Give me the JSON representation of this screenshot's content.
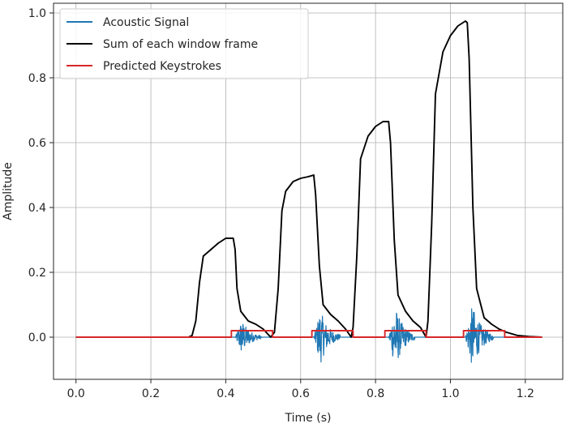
{
  "chart_data": {
    "type": "line",
    "xlabel": "Time (s)",
    "ylabel": "Amplitude",
    "xlim": [
      -0.06,
      1.3
    ],
    "ylim": [
      -0.13,
      1.03
    ],
    "x_ticks": [
      0.0,
      0.2,
      0.4,
      0.6,
      0.8,
      1.0,
      1.2
    ],
    "x_tick_labels": [
      "0.0",
      "0.2",
      "0.4",
      "0.6",
      "0.8",
      "1.0",
      "1.2"
    ],
    "y_ticks": [
      0.0,
      0.2,
      0.4,
      0.6,
      0.8,
      1.0
    ],
    "y_tick_labels": [
      "0.0",
      "0.2",
      "0.4",
      "0.6",
      "0.8",
      "1.0"
    ],
    "grid": true,
    "legend_position": "top-left",
    "series": [
      {
        "name": "Acoustic Signal",
        "color": "#1f77b4",
        "kind": "bursts",
        "baseline": 0.0,
        "x_range": [
          0.0,
          1.245
        ],
        "bursts": [
          {
            "start": 0.425,
            "end": 0.495,
            "peak": 0.055
          },
          {
            "start": 0.635,
            "end": 0.705,
            "peak": 0.085
          },
          {
            "start": 0.835,
            "end": 0.905,
            "peak": 0.1
          },
          {
            "start": 1.04,
            "end": 1.115,
            "peak": 0.1
          }
        ]
      },
      {
        "name": "Sum of each window frame",
        "color": "#000000",
        "kind": "line",
        "x": [
          0.0,
          0.3,
          0.31,
          0.32,
          0.33,
          0.34,
          0.36,
          0.38,
          0.4,
          0.42,
          0.425,
          0.43,
          0.44,
          0.46,
          0.48,
          0.5,
          0.52,
          0.53,
          0.54,
          0.55,
          0.56,
          0.58,
          0.6,
          0.62,
          0.635,
          0.64,
          0.65,
          0.66,
          0.68,
          0.7,
          0.72,
          0.735,
          0.74,
          0.75,
          0.76,
          0.78,
          0.8,
          0.82,
          0.835,
          0.84,
          0.85,
          0.86,
          0.88,
          0.9,
          0.92,
          0.935,
          0.94,
          0.95,
          0.96,
          0.98,
          1.0,
          1.02,
          1.04,
          1.045,
          1.05,
          1.06,
          1.07,
          1.09,
          1.11,
          1.13,
          1.15,
          1.18,
          1.21,
          1.245
        ],
        "y": [
          0.0,
          0.0,
          0.005,
          0.05,
          0.17,
          0.25,
          0.27,
          0.29,
          0.305,
          0.305,
          0.27,
          0.15,
          0.08,
          0.05,
          0.04,
          0.025,
          0.0,
          0.015,
          0.15,
          0.39,
          0.45,
          0.48,
          0.49,
          0.495,
          0.5,
          0.44,
          0.22,
          0.1,
          0.07,
          0.05,
          0.025,
          0.0,
          0.03,
          0.25,
          0.55,
          0.62,
          0.65,
          0.665,
          0.665,
          0.6,
          0.3,
          0.13,
          0.08,
          0.05,
          0.03,
          0.0,
          0.05,
          0.35,
          0.75,
          0.88,
          0.93,
          0.96,
          0.975,
          0.97,
          0.86,
          0.4,
          0.15,
          0.06,
          0.04,
          0.025,
          0.015,
          0.005,
          0.002,
          0.0
        ]
      },
      {
        "name": "Predicted Keystrokes",
        "color": "#d62728",
        "kind": "line",
        "x": [
          0.0,
          0.415,
          0.415,
          0.525,
          0.525,
          0.63,
          0.63,
          0.74,
          0.74,
          0.825,
          0.825,
          0.935,
          0.935,
          1.035,
          1.035,
          1.145,
          1.145,
          1.245
        ],
        "y": [
          0.0,
          0.0,
          0.02,
          0.02,
          0.0,
          0.0,
          0.02,
          0.02,
          0.0,
          0.0,
          0.02,
          0.02,
          0.0,
          0.0,
          0.02,
          0.02,
          0.0,
          0.0
        ]
      }
    ]
  }
}
